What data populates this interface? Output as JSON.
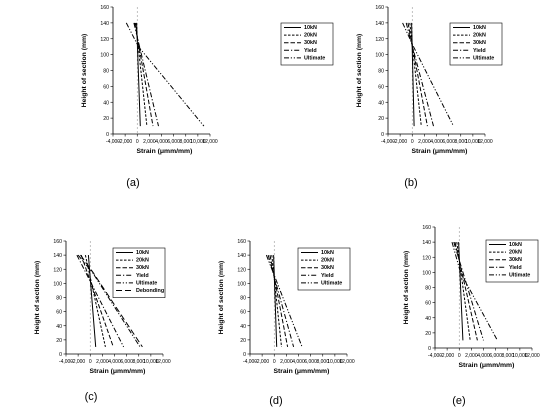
{
  "styles": {
    "10kN": "solid",
    "20kN": "dash-fine",
    "30kN": "dash",
    "Yield": "dash-dot",
    "Ultimate": "dash-dot-dot",
    "Debonding": "dash-long"
  },
  "chart_data": [
    {
      "panel": "a",
      "caption": "(a)",
      "type": "line",
      "xlabel": "Strain (μmm/mm)",
      "ylabel": "Height of section (mm)",
      "xlim": [
        -4000,
        12000
      ],
      "ylim": [
        0,
        160
      ],
      "xticks": [
        "-4,000",
        "-2,000",
        "0",
        "2,000",
        "4,000",
        "6,000",
        "8,000",
        "10,000",
        "12,000"
      ],
      "yticks": [
        "0",
        "20",
        "40",
        "60",
        "80",
        "100",
        "120",
        "140",
        "160"
      ],
      "legend_position": "top-right",
      "series": [
        {
          "name": "10kN",
          "x": [
            -100,
            500
          ],
          "y": [
            140,
            10
          ]
        },
        {
          "name": "20kN",
          "x": [
            -250,
            1600
          ],
          "y": [
            140,
            10
          ]
        },
        {
          "name": "30kN",
          "x": [
            -400,
            2600
          ],
          "y": [
            140,
            10
          ]
        },
        {
          "name": "Yield",
          "x": [
            -550,
            3500
          ],
          "y": [
            140,
            10
          ]
        },
        {
          "name": "Ultimate",
          "x": [
            -1800,
            200,
            11000
          ],
          "y": [
            140,
            110,
            10
          ]
        }
      ]
    },
    {
      "panel": "b",
      "caption": "(b)",
      "type": "line",
      "xlabel": "Strain (μmm/mm)",
      "ylabel": "Height of section (mm)",
      "xlim": [
        -4000,
        12000
      ],
      "ylim": [
        0,
        160
      ],
      "xticks": [
        "-4,000",
        "-2,000",
        "0",
        "2,000",
        "4,000",
        "6,000",
        "8,000",
        "10,000",
        "12,000"
      ],
      "yticks": [
        "0",
        "20",
        "40",
        "60",
        "80",
        "100",
        "120",
        "140",
        "160"
      ],
      "legend_position": "top-right",
      "series": [
        {
          "name": "10kN",
          "x": [
            -100,
            300
          ],
          "y": [
            140,
            10
          ]
        },
        {
          "name": "20kN",
          "x": [
            -400,
            1500
          ],
          "y": [
            140,
            10
          ]
        },
        {
          "name": "30kN",
          "x": [
            -700,
            2500
          ],
          "y": [
            140,
            10
          ]
        },
        {
          "name": "Yield",
          "x": [
            -1000,
            3500
          ],
          "y": [
            140,
            10
          ]
        },
        {
          "name": "Ultimate",
          "x": [
            -1600,
            200,
            6800
          ],
          "y": [
            140,
            110,
            10
          ]
        }
      ]
    },
    {
      "panel": "c",
      "caption": "(c)",
      "type": "line",
      "xlabel": "Strain (μmm/mm)",
      "ylabel": "Height of section (mm)",
      "xlim": [
        -4000,
        12000
      ],
      "ylim": [
        0,
        160
      ],
      "xticks": [
        "-4,000",
        "-2,000",
        "0",
        "2,000",
        "4,000",
        "6,000",
        "8,000",
        "10,000",
        "12,000"
      ],
      "yticks": [
        "0",
        "20",
        "40",
        "60",
        "80",
        "100",
        "120",
        "140",
        "160"
      ],
      "legend_position": "top-right",
      "series": [
        {
          "name": "10kN",
          "x": [
            -300,
            900
          ],
          "y": [
            140,
            10
          ]
        },
        {
          "name": "20kN",
          "x": [
            -800,
            2500
          ],
          "y": [
            140,
            10
          ]
        },
        {
          "name": "30kN",
          "x": [
            -1500,
            3800
          ],
          "y": [
            140,
            10
          ]
        },
        {
          "name": "Yield",
          "x": [
            -2200,
            5500
          ],
          "y": [
            140,
            10
          ]
        },
        {
          "name": "Ultimate",
          "x": [
            -2000,
            400,
            8200
          ],
          "y": [
            140,
            115,
            10
          ]
        },
        {
          "name": "Debonding",
          "x": [
            -1600,
            500,
            8600
          ],
          "y": [
            140,
            115,
            10
          ]
        }
      ]
    },
    {
      "panel": "d",
      "caption": "(d)",
      "type": "line",
      "xlabel": "Strain (μmm/mm)",
      "ylabel": "Height of section (mm)",
      "xlim": [
        -4000,
        12000
      ],
      "ylim": [
        0,
        160
      ],
      "xticks": [
        "-4,000",
        "-2,000",
        "0",
        "2,000",
        "4,000",
        "6,000",
        "8,000",
        "10,000",
        "12,000"
      ],
      "yticks": [
        "0",
        "20",
        "40",
        "60",
        "80",
        "100",
        "120",
        "140",
        "160"
      ],
      "legend_position": "top-right",
      "series": [
        {
          "name": "10kN",
          "x": [
            -100,
            400
          ],
          "y": [
            140,
            10
          ]
        },
        {
          "name": "20kN",
          "x": [
            -400,
            1200
          ],
          "y": [
            140,
            10
          ]
        },
        {
          "name": "30kN",
          "x": [
            -700,
            2200
          ],
          "y": [
            140,
            10
          ]
        },
        {
          "name": "Yield",
          "x": [
            -1000,
            3200
          ],
          "y": [
            140,
            10
          ]
        },
        {
          "name": "Ultimate",
          "x": [
            -1300,
            4600
          ],
          "y": [
            140,
            10
          ]
        }
      ]
    },
    {
      "panel": "e",
      "caption": "(e)",
      "type": "line",
      "xlabel": "Strain (μmm/mm)",
      "ylabel": "Height of section (mm)",
      "xlim": [
        -4000,
        12000
      ],
      "ylim": [
        0,
        160
      ],
      "xticks": [
        "-4,000",
        "-2,000",
        "0",
        "2,000",
        "4,000",
        "6,000",
        "8,000",
        "10,000",
        "12,000"
      ],
      "yticks": [
        "0",
        "20",
        "40",
        "60",
        "80",
        "100",
        "120",
        "140",
        "160"
      ],
      "legend_position": "top-right",
      "series": [
        {
          "name": "10kN",
          "x": [
            -100,
            600
          ],
          "y": [
            140,
            10
          ]
        },
        {
          "name": "20kN",
          "x": [
            -400,
            1800
          ],
          "y": [
            140,
            10
          ]
        },
        {
          "name": "30kN",
          "x": [
            -700,
            3000
          ],
          "y": [
            140,
            10
          ]
        },
        {
          "name": "Yield",
          "x": [
            -900,
            4000
          ],
          "y": [
            140,
            10
          ]
        },
        {
          "name": "Ultimate",
          "x": [
            -1200,
            200,
            6300
          ],
          "y": [
            140,
            100,
            10
          ]
        }
      ]
    }
  ]
}
